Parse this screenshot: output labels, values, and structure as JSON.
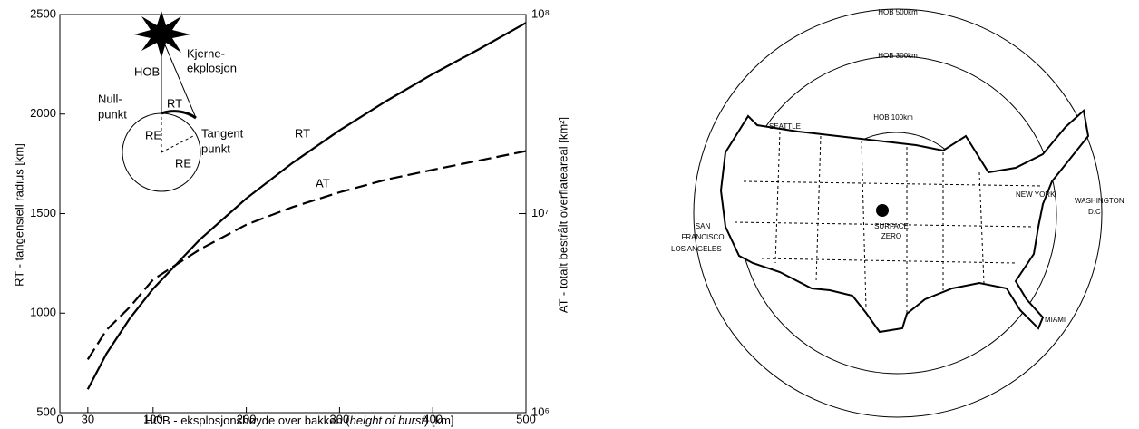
{
  "chart_data": {
    "type": "line",
    "xlabel": [
      "HOB - eksplosjonshøyde over bakken (",
      "height of burst",
      ") [km]"
    ],
    "ylabel": "RT - tangensiell radius [km]",
    "y2label": "AT - totalt bestrålt overflateareal [km²]",
    "x": [
      30,
      50,
      75,
      100,
      150,
      200,
      250,
      300,
      350,
      400,
      450,
      500
    ],
    "series": [
      {
        "name": "RT",
        "color": "#000000",
        "line_style": "solid",
        "axis": "y",
        "values": [
          617,
          796,
          973,
          1122,
          1369,
          1576,
          1756,
          1918,
          2065,
          2201,
          2327,
          2458
        ]
      },
      {
        "name": "AT",
        "color": "#000000",
        "line_style": "dashed",
        "axis": "y2",
        "values": [
          1850000,
          2600000,
          3390000,
          4660000,
          6600000,
          8800000,
          10800000,
          12800000,
          14800000,
          16600000,
          18500000,
          20600000
        ]
      }
    ],
    "xlim": [
      0,
      500
    ],
    "xticks": [
      0,
      30,
      100,
      200,
      300,
      400,
      500
    ],
    "ylim": [
      500,
      2500
    ],
    "yticks": [
      500,
      1000,
      1500,
      2000,
      2500
    ],
    "y2lim": [
      1000000,
      100000000
    ],
    "y2log": true,
    "y2ticks": [
      {
        "value": 1000000,
        "label": "10⁶"
      },
      {
        "value": 10000000,
        "label": "10⁷"
      },
      {
        "value": 100000000,
        "label": "10⁸"
      }
    ],
    "grid": false
  },
  "inset": {
    "hob": "HOB",
    "explosion": [
      "Kjerne-",
      "ekplosjon"
    ],
    "null_point": [
      "Null-",
      "punkt"
    ],
    "tangent_point": [
      "Tangent",
      "punkt"
    ],
    "rt": "RT",
    "re": "RE"
  },
  "map": {
    "circles": [
      "HOB  500km",
      "HOB  300km",
      "HOB  100km"
    ],
    "cities": {
      "seattle": "SEATTLE",
      "san_francisco": [
        "SAN",
        "FRANCISCO"
      ],
      "los_angeles": "LOS ANGELES",
      "new_york": "NEW YORK",
      "washington": [
        "WASHINGTON",
        "D.C."
      ],
      "miami": "MIAMI"
    },
    "surface_zero": [
      "SURFACE",
      "ZERO"
    ]
  }
}
